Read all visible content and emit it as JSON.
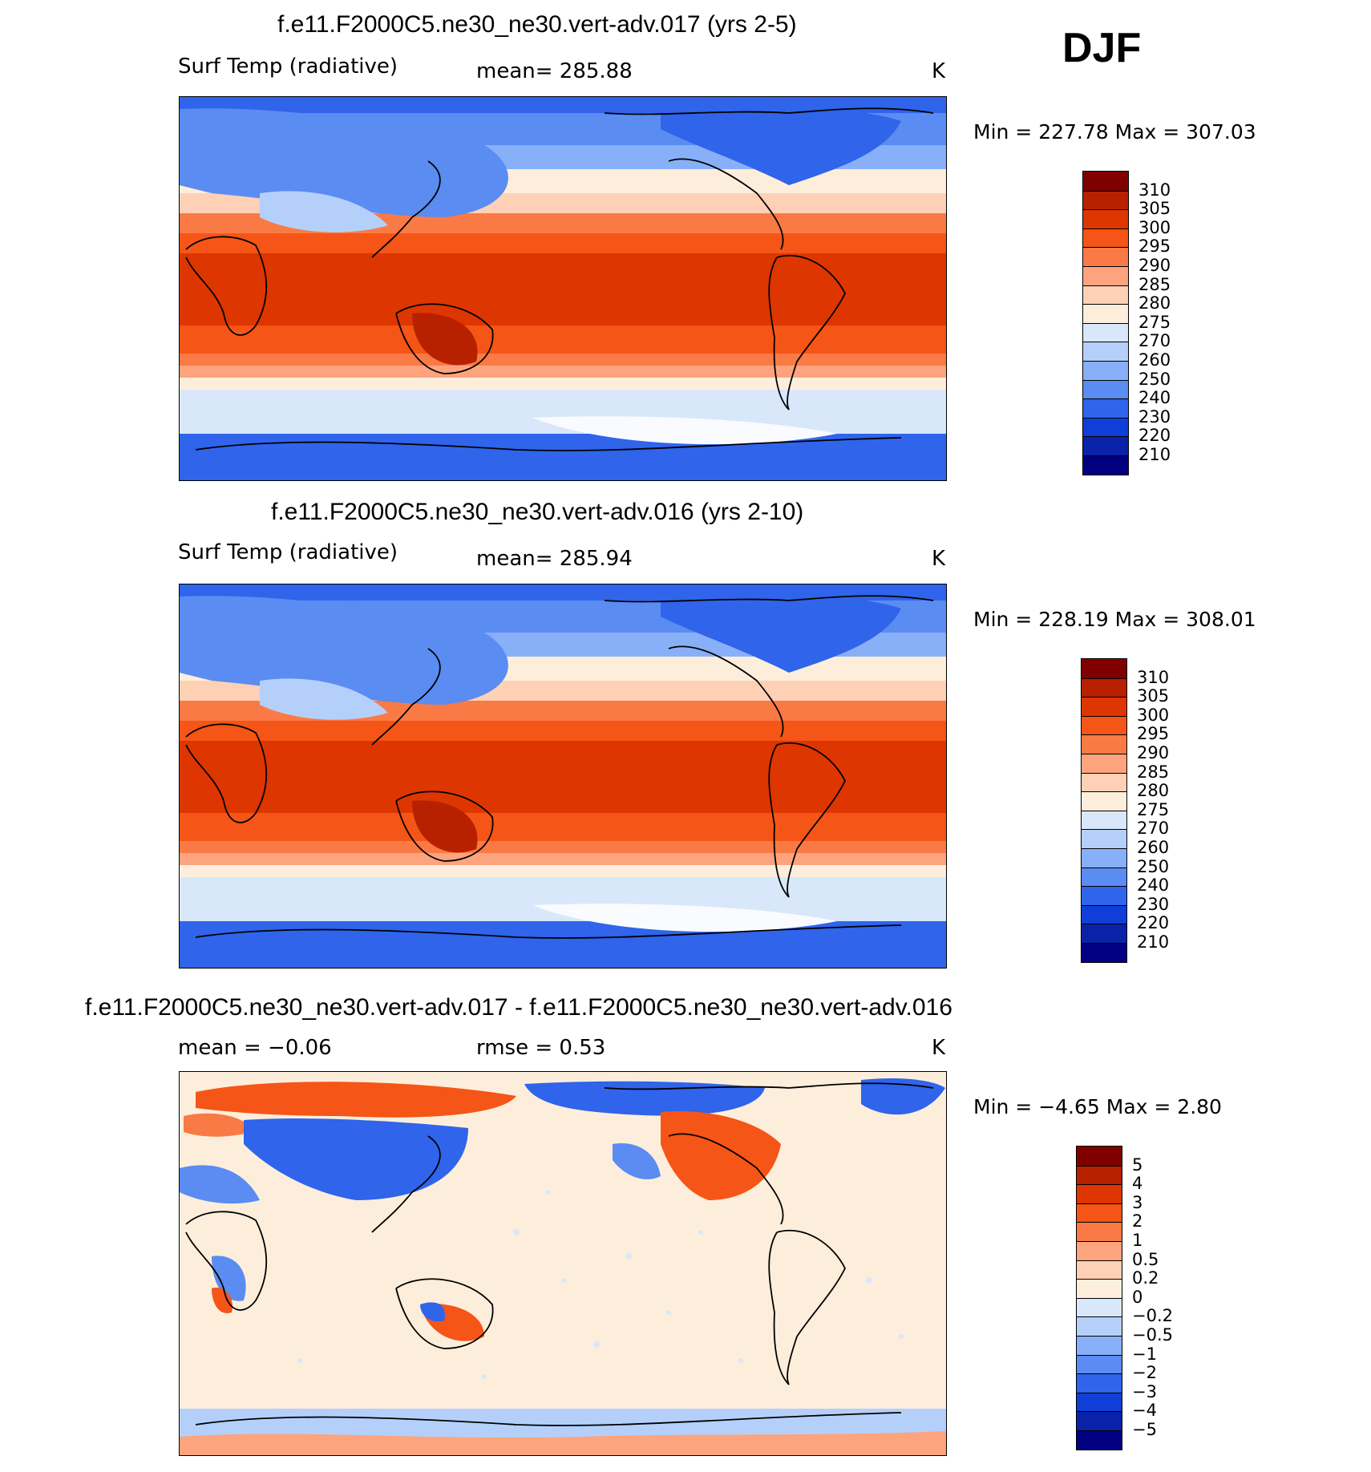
{
  "season": "DJF",
  "units": "K",
  "chart_data": [
    {
      "type": "heatmap",
      "title": "f.e11.F2000C5.ne30_ne30.vert-adv.017 (yrs 2-5)",
      "variable": "Surf Temp (radiative)",
      "mean_text": "mean=  285.88",
      "units": "K",
      "minmax_text": "Min  =  227.78  Max  =  307.03",
      "min": 227.78,
      "max": 307.03,
      "colorbar": {
        "levels": [
          "310",
          "305",
          "300",
          "295",
          "290",
          "285",
          "280",
          "275",
          "270",
          "260",
          "250",
          "240",
          "230",
          "220",
          "210"
        ],
        "colors": [
          "#800000",
          "#b82100",
          "#de3600",
          "#f55516",
          "#fa7a45",
          "#fda47e",
          "#fed0b5",
          "#fdeedc",
          "#d8e8fa",
          "#b4d0fa",
          "#88b0f8",
          "#5a8cf2",
          "#2f64eb",
          "#0f3ed8",
          "#0a22aa",
          "#000081"
        ]
      }
    },
    {
      "type": "heatmap",
      "title": "f.e11.F2000C5.ne30_ne30.vert-adv.016 (yrs 2-10)",
      "variable": "Surf Temp (radiative)",
      "mean_text": "mean=  285.94",
      "units": "K",
      "minmax_text": "Min  =  228.19  Max  =  308.01",
      "min": 228.19,
      "max": 308.01,
      "colorbar": {
        "levels": [
          "310",
          "305",
          "300",
          "295",
          "290",
          "285",
          "280",
          "275",
          "270",
          "260",
          "250",
          "240",
          "230",
          "220",
          "210"
        ],
        "colors": [
          "#800000",
          "#b82100",
          "#de3600",
          "#f55516",
          "#fa7a45",
          "#fda47e",
          "#fed0b5",
          "#fdeedc",
          "#d8e8fa",
          "#b4d0fa",
          "#88b0f8",
          "#5a8cf2",
          "#2f64eb",
          "#0f3ed8",
          "#0a22aa",
          "#000081"
        ]
      }
    },
    {
      "type": "heatmap",
      "title": "f.e11.F2000C5.ne30_ne30.vert-adv.017 - f.e11.F2000C5.ne30_ne30.vert-adv.016",
      "mean_text": "mean =    −0.06",
      "rmse_text": "rmse =      0.53",
      "units": "K",
      "minmax_text": "Min  =    −4.65  Max  =      2.80",
      "min": -4.65,
      "max": 2.8,
      "colorbar": {
        "levels": [
          "5",
          "4",
          "3",
          "2",
          "1",
          "0.5",
          "0.2",
          "0",
          "−0.2",
          "−0.5",
          "−1",
          "−2",
          "−3",
          "−4",
          "−5"
        ],
        "colors": [
          "#800000",
          "#b82100",
          "#de3600",
          "#f55516",
          "#fa7a45",
          "#fda47e",
          "#fed0b5",
          "#fdeedc",
          "#d8e8fa",
          "#b4d0fa",
          "#88b0f8",
          "#5a8cf2",
          "#2f64eb",
          "#0f3ed8",
          "#0a22aa",
          "#000081"
        ]
      }
    }
  ]
}
